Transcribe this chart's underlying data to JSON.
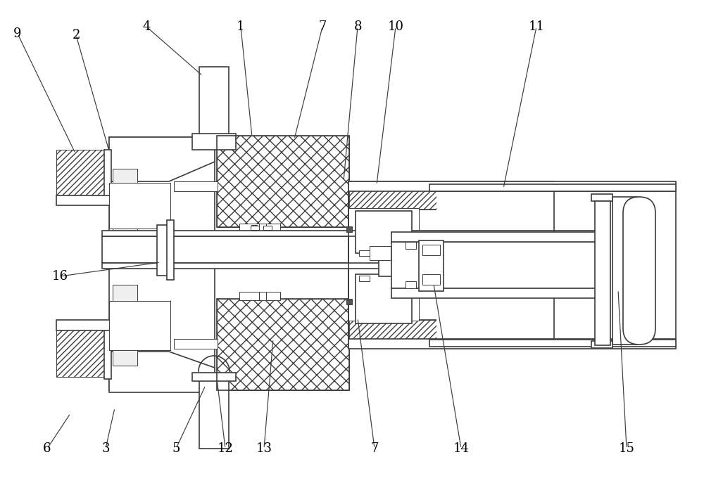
{
  "bg_color": "#ffffff",
  "lc": "#3c3c3c",
  "lw_main": 1.2,
  "lw_thin": 0.7,
  "figsize": [
    10.0,
    7.04
  ],
  "dpi": 100,
  "annotations": [
    [
      "9",
      25,
      48,
      107,
      218
    ],
    [
      "2",
      108,
      50,
      155,
      215
    ],
    [
      "4",
      208,
      38,
      288,
      108
    ],
    [
      "1",
      342,
      38,
      358,
      195
    ],
    [
      "7",
      458,
      38,
      418,
      198
    ],
    [
      "8",
      508,
      38,
      488,
      258
    ],
    [
      "10",
      562,
      38,
      535,
      263
    ],
    [
      "11",
      762,
      38,
      715,
      268
    ],
    [
      "16",
      85,
      393,
      228,
      373
    ],
    [
      "6",
      67,
      638,
      100,
      588
    ],
    [
      "3",
      150,
      638,
      163,
      580
    ],
    [
      "5",
      250,
      638,
      292,
      548
    ],
    [
      "12",
      320,
      638,
      308,
      538
    ],
    [
      "13",
      375,
      638,
      388,
      482
    ],
    [
      "7",
      532,
      638,
      508,
      452
    ],
    [
      "14",
      655,
      638,
      615,
      398
    ],
    [
      "15",
      890,
      638,
      878,
      412
    ]
  ]
}
